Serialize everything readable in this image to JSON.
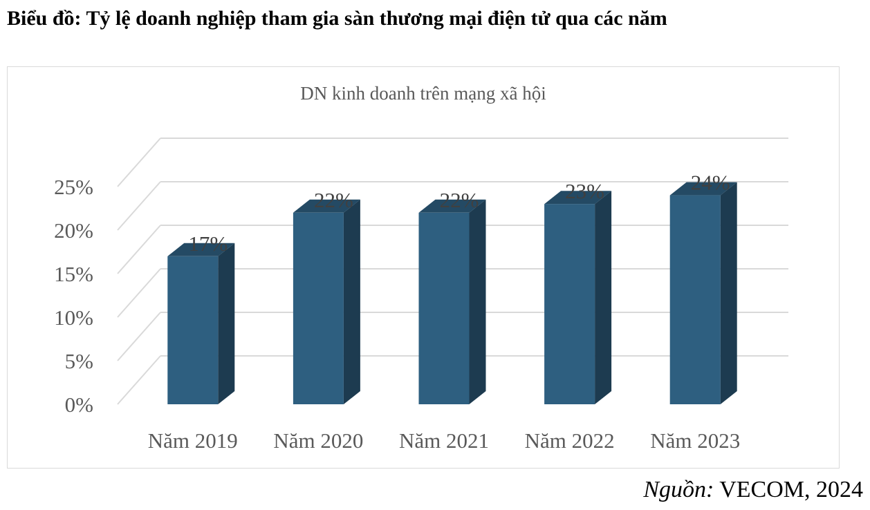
{
  "heading": "Biểu đồ: Tỷ lệ doanh nghiệp tham gia sàn thương mại điện tử qua các năm",
  "source": {
    "label": "Nguồn:",
    "value": "VECOM, 2024"
  },
  "colors": {
    "bar_front": "#2e5f80",
    "bar_side": "#1d3b50",
    "bar_top": "#244a64",
    "grid": "#d9d9d9"
  },
  "chart_data": {
    "type": "bar",
    "title": "DN kinh doanh trên mạng xã hội",
    "categories": [
      "Năm 2019",
      "Năm 2020",
      "Năm 2021",
      "Năm 2022",
      "Năm 2023"
    ],
    "values": [
      17,
      22,
      22,
      23,
      24
    ],
    "data_labels": [
      "17%",
      "22%",
      "22%",
      "23%",
      "24%"
    ],
    "y_ticks": [
      "0%",
      "5%",
      "10%",
      "15%",
      "20%",
      "25%"
    ],
    "ylim": [
      0,
      25
    ],
    "grid": true,
    "style": "3d-column"
  }
}
